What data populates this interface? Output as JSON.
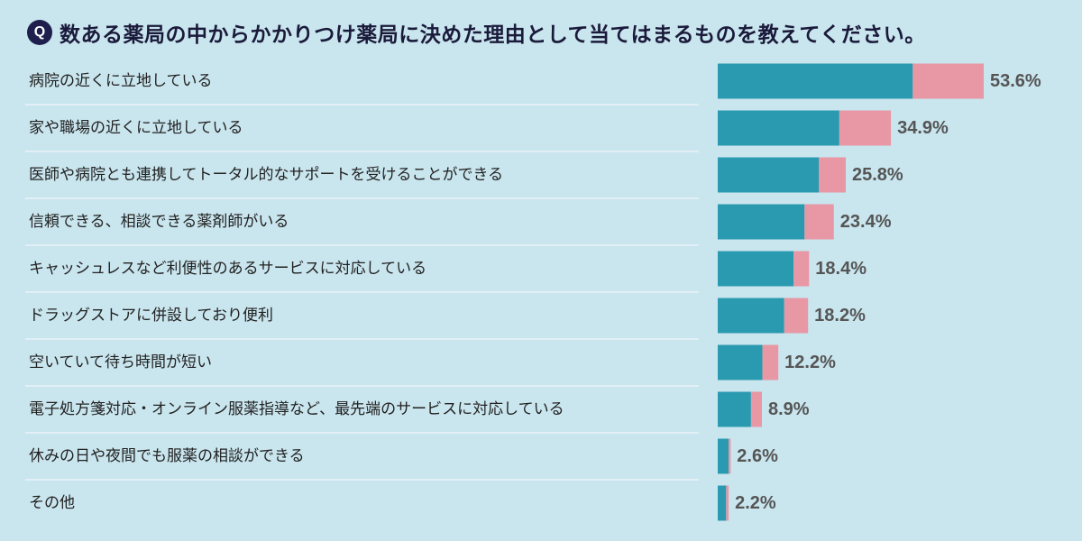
{
  "question_badge": "Q",
  "title": "数ある薬局の中からかかりつけ薬局に決めた理由として当てはまるものを教えてください。",
  "colors": {
    "background": "#c9e5ee",
    "bar_primary": "#2a9ab0",
    "bar_secondary": "#e897a4",
    "divider": "#f2f8fb",
    "value_text": "#555555"
  },
  "chart_data": {
    "type": "bar",
    "orientation": "horizontal",
    "stacked": true,
    "title": "数ある薬局の中からかかりつけ薬局に決めた理由として当てはまるものを教えてください。",
    "xlabel": "",
    "ylabel": "",
    "xlim": [
      0,
      53.6
    ],
    "categories": [
      "病院の近くに立地している",
      "家や職場の近くに立地している",
      "医師や病院とも連携してトータル的なサポートを受けることができる",
      "信頼できる、相談できる薬剤師がいる",
      "キャッシュレスなど利便性のあるサービスに対応している",
      "ドラッグストアに併設しており便利",
      "空いていて待ち時間が短い",
      "電子処方箋対応・オンライン服薬指導など、最先端のサービスに対応している",
      "休みの日や夜間でも服薬の相談ができる",
      "その他"
    ],
    "series": [
      {
        "name": "primary",
        "color": "#2a9ab0",
        "values": [
          39.3,
          24.5,
          20.4,
          17.5,
          15.3,
          13.4,
          9.0,
          6.7,
          2.2,
          1.7
        ]
      },
      {
        "name": "secondary",
        "color": "#e897a4",
        "values": [
          14.3,
          10.4,
          5.4,
          5.9,
          3.1,
          4.8,
          3.2,
          2.2,
          0.4,
          0.5
        ]
      }
    ],
    "totals": [
      53.6,
      34.9,
      25.8,
      23.4,
      18.4,
      18.2,
      12.2,
      8.9,
      2.6,
      2.2
    ],
    "value_labels": [
      "53.6%",
      "34.9%",
      "25.8%",
      "23.4%",
      "18.4%",
      "18.2%",
      "12.2%",
      "8.9%",
      "2.6%",
      "2.2%"
    ]
  }
}
